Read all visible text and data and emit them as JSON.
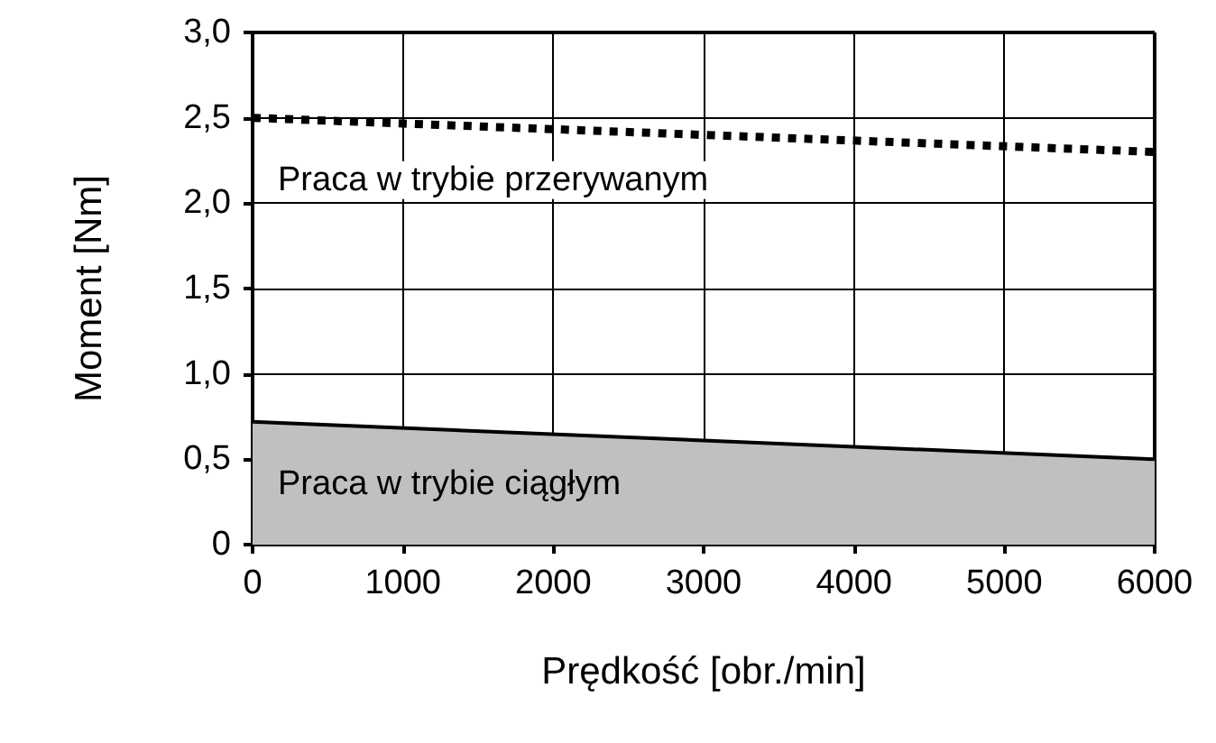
{
  "chart_data": {
    "type": "line",
    "xlabel": "Prędkość [obr./min]",
    "ylabel": "Moment [Nm]",
    "x": [
      0,
      6000
    ],
    "series": [
      {
        "name": "Praca w trybie przerywanym",
        "type": "line",
        "color": "#000000",
        "line_style": "dotted",
        "values": [
          2.5,
          2.3
        ]
      },
      {
        "name": "Praca w trybie ciągłym",
        "type": "area",
        "color": "#c0c0c0",
        "values": [
          0.72,
          0.5
        ]
      }
    ],
    "xlim": [
      0,
      6000
    ],
    "xticks": [
      0,
      1000,
      2000,
      3000,
      4000,
      5000,
      6000
    ],
    "ylim": [
      0,
      3
    ],
    "yticks": [
      0,
      {
        "value": 0.5,
        "label": "0,5"
      },
      {
        "value": 1,
        "label": "1,0"
      },
      {
        "value": 1.5,
        "label": "1,5"
      },
      {
        "value": 2,
        "label": "2,0"
      },
      {
        "value": 2.5,
        "label": "2,5"
      },
      {
        "value": 3,
        "label": "3,0"
      }
    ],
    "grid": true,
    "legend": false,
    "marker": "none"
  }
}
